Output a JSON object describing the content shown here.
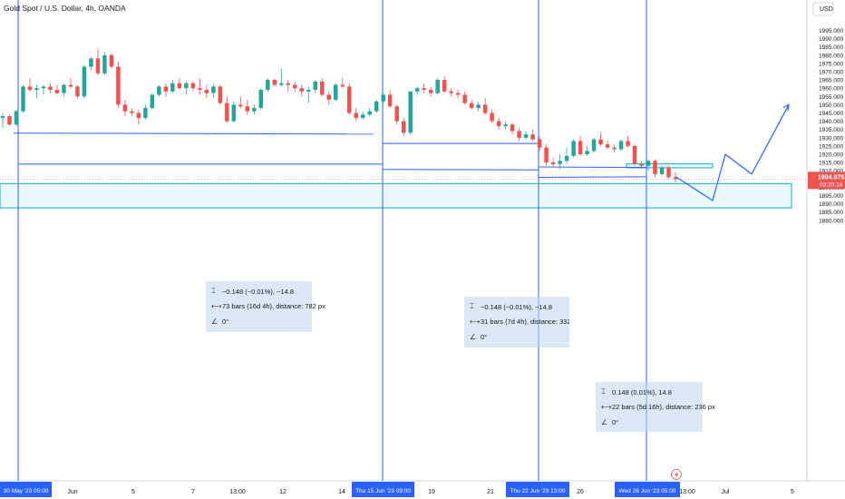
{
  "symbol": {
    "title": "Gold Spot / U.S. Dollar, 4h, OANDA"
  },
  "price_axis": {
    "currency": "USD",
    "ticks": [
      "1995.000",
      "1990.000",
      "1985.000",
      "1980.000",
      "1975.000",
      "1970.000",
      "1965.000",
      "1960.000",
      "1955.000",
      "1950.000",
      "1945.000",
      "1940.000",
      "1935.000",
      "1930.000",
      "1925.000",
      "1920.000",
      "1915.000",
      "1910.000",
      "1905.000",
      "1900.000",
      "1895.000",
      "1890.000",
      "1885.000",
      "1880.000"
    ],
    "current_price": "1904.975",
    "countdown": "03:20:14",
    "last_price_color": "#ef5350"
  },
  "time_axis": {
    "labels": [
      "Jun",
      "5",
      "7",
      "13:00",
      "12",
      "14",
      "19",
      "21",
      "26",
      "13:00",
      "Jul",
      "5"
    ],
    "highlighted": [
      "30 May '23   05:00",
      "Thu 15 Jun '23   09:00",
      "Thu 22 Jun '23   13:00",
      "Wed 28 Jun '23   05:00"
    ],
    "highlight_color": "#2962ff"
  },
  "measurements": [
    {
      "price_change": "−0.148 (−0.01%), −14.8",
      "bars": "73 bars (16d 4h), distance: 782 px",
      "angle": "0°"
    },
    {
      "price_change": "−0.148 (−0.01%), −14.8",
      "bars": "31 bars (7d 4h), distance: 332 px",
      "angle": "0°"
    },
    {
      "price_change": "0.148 (0.01%), 14.8",
      "bars": "22 bars (5d 16h), distance: 236 px",
      "angle": "0°"
    }
  ],
  "icons": {
    "price_range": "price-range-icon",
    "bars_range": "bars-range-icon",
    "angle": "angle-icon",
    "lightning": "lightning-icon"
  },
  "colors": {
    "up": "#26a69a",
    "down": "#ef5350",
    "drawing": "#2962ff",
    "zone_border": "#31b8d8",
    "zone_fill": "#e0f6fb"
  },
  "chart_data": {
    "type": "candlestick",
    "symbol": "XAUUSD",
    "timeframe": "4h",
    "ylim": [
      1877,
      1998
    ],
    "ohlc": [
      [
        1942,
        1945,
        1936,
        1943
      ],
      [
        1943,
        1944,
        1937,
        1938
      ],
      [
        1938,
        1947,
        1937,
        1946
      ],
      [
        1946,
        1962,
        1945,
        1961
      ],
      [
        1961,
        1966,
        1958,
        1959
      ],
      [
        1959,
        1962,
        1954,
        1960
      ],
      [
        1960,
        1962,
        1956,
        1961
      ],
      [
        1961,
        1963,
        1957,
        1959
      ],
      [
        1959,
        1962,
        1956,
        1957
      ],
      [
        1957,
        1963,
        1955,
        1962
      ],
      [
        1962,
        1966,
        1960,
        1961
      ],
      [
        1961,
        1962,
        1954,
        1955
      ],
      [
        1955,
        1974,
        1954,
        1973
      ],
      [
        1973,
        1979,
        1971,
        1978
      ],
      [
        1978,
        1984,
        1968,
        1969
      ],
      [
        1969,
        1982,
        1968,
        1980
      ],
      [
        1980,
        1981,
        1972,
        1973
      ],
      [
        1973,
        1976,
        1948,
        1950
      ],
      [
        1950,
        1953,
        1943,
        1946
      ],
      [
        1946,
        1948,
        1943,
        1945
      ],
      [
        1945,
        1947,
        1938,
        1942
      ],
      [
        1942,
        1950,
        1941,
        1948
      ],
      [
        1948,
        1957,
        1947,
        1956
      ],
      [
        1956,
        1962,
        1955,
        1961
      ],
      [
        1961,
        1963,
        1955,
        1958
      ],
      [
        1958,
        1965,
        1957,
        1963
      ],
      [
        1963,
        1966,
        1959,
        1960
      ],
      [
        1960,
        1964,
        1956,
        1963
      ],
      [
        1963,
        1964,
        1958,
        1960
      ],
      [
        1960,
        1966,
        1956,
        1959
      ],
      [
        1959,
        1962,
        1954,
        1957
      ],
      [
        1957,
        1963,
        1954,
        1961
      ],
      [
        1961,
        1962,
        1950,
        1951
      ],
      [
        1951,
        1955,
        1939,
        1940
      ],
      [
        1940,
        1952,
        1939,
        1950
      ],
      [
        1950,
        1955,
        1948,
        1949
      ],
      [
        1949,
        1953,
        1944,
        1946
      ],
      [
        1946,
        1950,
        1944,
        1948
      ],
      [
        1948,
        1960,
        1947,
        1959
      ],
      [
        1959,
        1966,
        1958,
        1965
      ],
      [
        1965,
        1966,
        1961,
        1962
      ],
      [
        1962,
        1972,
        1961,
        1963
      ],
      [
        1963,
        1965,
        1958,
        1962
      ],
      [
        1962,
        1964,
        1958,
        1960
      ],
      [
        1960,
        1962,
        1955,
        1958
      ],
      [
        1958,
        1961,
        1951,
        1959
      ],
      [
        1959,
        1965,
        1957,
        1964
      ],
      [
        1964,
        1966,
        1955,
        1956
      ],
      [
        1956,
        1958,
        1950,
        1953
      ],
      [
        1953,
        1963,
        1952,
        1962
      ],
      [
        1962,
        1966,
        1960,
        1961
      ],
      [
        1961,
        1963,
        1944,
        1945
      ],
      [
        1945,
        1948,
        1940,
        1942
      ],
      [
        1942,
        1946,
        1941,
        1944
      ],
      [
        1944,
        1948,
        1943,
        1946
      ],
      [
        1946,
        1953,
        1945,
        1952
      ],
      [
        1952,
        1957,
        1951,
        1956
      ],
      [
        1956,
        1959,
        1948,
        1949
      ],
      [
        1949,
        1950,
        1938,
        1940
      ],
      [
        1940,
        1942,
        1931,
        1933
      ],
      [
        1933,
        1958,
        1932,
        1958
      ],
      [
        1958,
        1961,
        1956,
        1960
      ],
      [
        1960,
        1963,
        1957,
        1959
      ],
      [
        1959,
        1961,
        1955,
        1957
      ],
      [
        1957,
        1966,
        1956,
        1965
      ],
      [
        1965,
        1967,
        1957,
        1958
      ],
      [
        1958,
        1960,
        1955,
        1957
      ],
      [
        1957,
        1959,
        1954,
        1956
      ],
      [
        1956,
        1958,
        1950,
        1951
      ],
      [
        1951,
        1953,
        1947,
        1948
      ],
      [
        1948,
        1952,
        1946,
        1950
      ],
      [
        1950,
        1954,
        1944,
        1945
      ],
      [
        1945,
        1947,
        1939,
        1940
      ],
      [
        1940,
        1942,
        1935,
        1937
      ],
      [
        1937,
        1940,
        1935,
        1938
      ],
      [
        1938,
        1939,
        1932,
        1934
      ],
      [
        1934,
        1936,
        1928,
        1930
      ],
      [
        1930,
        1934,
        1929,
        1932
      ],
      [
        1932,
        1935,
        1928,
        1929
      ],
      [
        1929,
        1931,
        1922,
        1924
      ],
      [
        1924,
        1926,
        1913,
        1915
      ],
      [
        1915,
        1918,
        1912,
        1914
      ],
      [
        1914,
        1920,
        1911,
        1916
      ],
      [
        1916,
        1924,
        1914,
        1919
      ],
      [
        1919,
        1929,
        1918,
        1928
      ],
      [
        1928,
        1931,
        1919,
        1920
      ],
      [
        1920,
        1925,
        1919,
        1922
      ],
      [
        1922,
        1930,
        1921,
        1929
      ],
      [
        1929,
        1933,
        1925,
        1926
      ],
      [
        1926,
        1928,
        1923,
        1924
      ],
      [
        1924,
        1926,
        1921,
        1923
      ],
      [
        1923,
        1929,
        1922,
        1928
      ],
      [
        1928,
        1931,
        1924,
        1925
      ],
      [
        1925,
        1926,
        1913,
        1914
      ],
      [
        1914,
        1916,
        1911,
        1913
      ],
      [
        1913,
        1917,
        1910,
        1916
      ],
      [
        1916,
        1917,
        1906,
        1908
      ],
      [
        1908,
        1913,
        1907,
        1912
      ],
      [
        1912,
        1913,
        1905,
        1906
      ],
      [
        1906,
        1909,
        1903,
        1905
      ]
    ],
    "drawings": {
      "rectangle_zone": [
        1887.5,
        1902.2
      ],
      "projection_path": [
        [
          1905.5,
          0
        ],
        [
          1892,
          0
        ],
        [
          1920,
          0
        ],
        [
          1908,
          0
        ],
        [
          1950,
          0
        ]
      ]
    }
  }
}
